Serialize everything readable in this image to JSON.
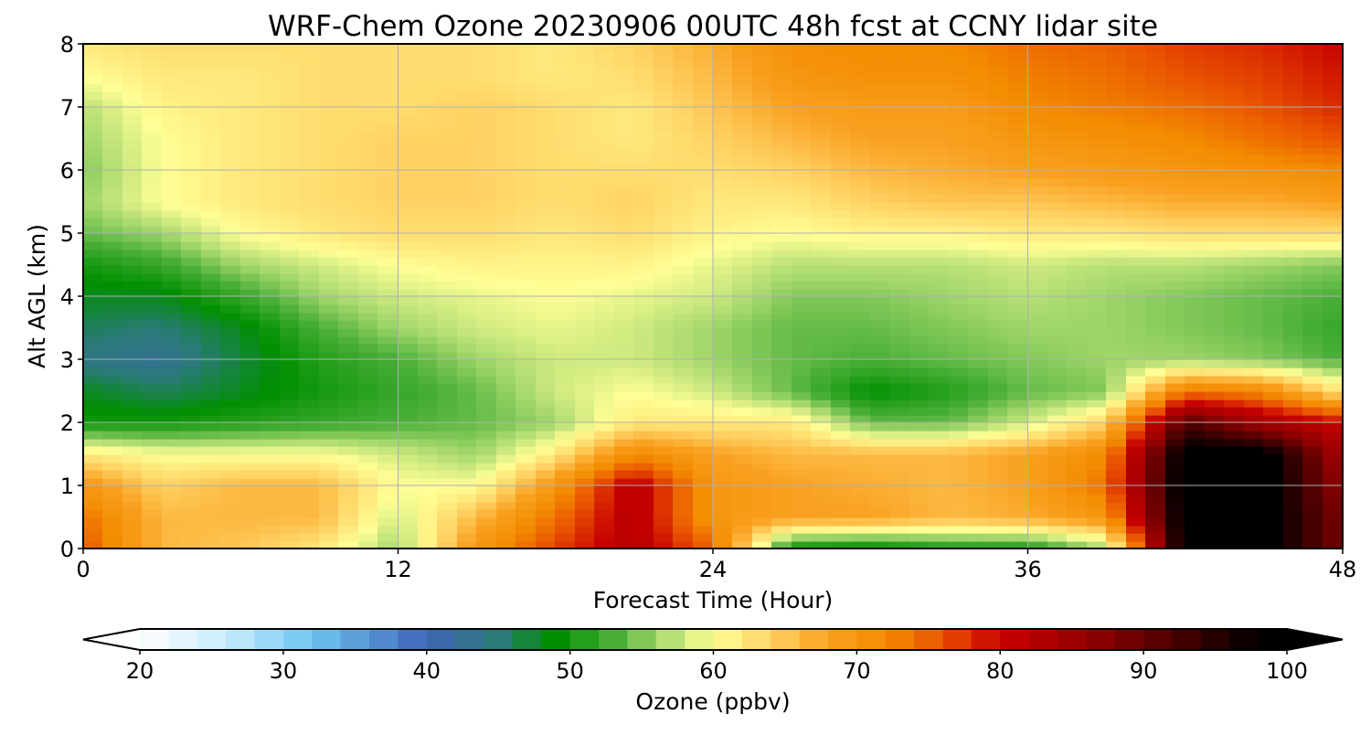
{
  "chart_data": {
    "type": "heatmap",
    "title": "WRF-Chem Ozone  20230906 00UTC 48h fcst at CCNY lidar site",
    "xlabel": "Forecast Time (Hour)",
    "ylabel": "Alt AGL (km)",
    "xlim": [
      0,
      48
    ],
    "ylim": [
      0,
      8
    ],
    "x_ticks": [
      "0",
      "12",
      "24",
      "36",
      "48"
    ],
    "y_ticks": [
      "0",
      "1",
      "2",
      "3",
      "4",
      "5",
      "6",
      "7",
      "8"
    ],
    "grid": true,
    "x": [
      0,
      3,
      6,
      9,
      12,
      15,
      18,
      21,
      24,
      27,
      30,
      33,
      36,
      39,
      42,
      45,
      48
    ],
    "y": [
      0,
      0.5,
      1,
      1.5,
      2,
      2.5,
      3,
      3.5,
      4,
      4.5,
      5,
      5.5,
      6,
      6.5,
      7,
      7.5,
      8
    ],
    "z_units": "ppbv",
    "z": [
      [
        76,
        66,
        65,
        62,
        56,
        70,
        77,
        82,
        75,
        49,
        48,
        50,
        50,
        56,
        100,
        100,
        88
      ],
      [
        74,
        66,
        66,
        66,
        58,
        66,
        74,
        82,
        70,
        68,
        68,
        66,
        67,
        70,
        100,
        100,
        88
      ],
      [
        70,
        64,
        66,
        66,
        60,
        60,
        70,
        82,
        70,
        68,
        67,
        66,
        68,
        74,
        100,
        100,
        86
      ],
      [
        62,
        60,
        60,
        60,
        58,
        56,
        62,
        72,
        68,
        66,
        66,
        66,
        68,
        72,
        100,
        100,
        84
      ],
      [
        50,
        50,
        51,
        52,
        53,
        54,
        56,
        62,
        62,
        62,
        54,
        54,
        58,
        64,
        92,
        84,
        80
      ],
      [
        48,
        46,
        48,
        50,
        52,
        54,
        58,
        60,
        58,
        54,
        49,
        51,
        54,
        55,
        74,
        72,
        62
      ],
      [
        44,
        43,
        47,
        51,
        53,
        56,
        58,
        58,
        56,
        54,
        53,
        54,
        55,
        56,
        56,
        55,
        53
      ],
      [
        46,
        45,
        48,
        53,
        56,
        58,
        59,
        58,
        56,
        54,
        54,
        55,
        56,
        56,
        55,
        54,
        52
      ],
      [
        48,
        48,
        52,
        56,
        58,
        59,
        60,
        59,
        58,
        55,
        55,
        56,
        57,
        56,
        55,
        54,
        53
      ],
      [
        50,
        52,
        56,
        58,
        60,
        61,
        61,
        61,
        59,
        57,
        57,
        57,
        58,
        57,
        57,
        56,
        55
      ],
      [
        54,
        56,
        60,
        62,
        63,
        63,
        62,
        63,
        61,
        60,
        61,
        61,
        62,
        62,
        63,
        63,
        63
      ],
      [
        56,
        60,
        62,
        63,
        64,
        64,
        63,
        64,
        62,
        62,
        64,
        65,
        65,
        66,
        67,
        67,
        68
      ],
      [
        55,
        60,
        62,
        63,
        64,
        64,
        63,
        63,
        63,
        64,
        66,
        67,
        68,
        69,
        70,
        71,
        72
      ],
      [
        56,
        60,
        62,
        63,
        64,
        64,
        63,
        62,
        64,
        66,
        68,
        68,
        70,
        71,
        72,
        74,
        76
      ],
      [
        57,
        61,
        62,
        63,
        63,
        64,
        63,
        62,
        65,
        68,
        69,
        69,
        72,
        73,
        74,
        76,
        78
      ],
      [
        60,
        62,
        62,
        63,
        63,
        63,
        62,
        63,
        66,
        70,
        71,
        71,
        73,
        74,
        76,
        77,
        79
      ],
      [
        62,
        63,
        63,
        63,
        63,
        63,
        62,
        64,
        67,
        71,
        72,
        72,
        74,
        75,
        77,
        78,
        80
      ]
    ],
    "colorbar": {
      "label": "Ozone  (ppbv)",
      "min": 20,
      "max": 100,
      "ticks": [
        "20",
        "30",
        "40",
        "50",
        "60",
        "70",
        "80",
        "90",
        "100"
      ],
      "extend": "both",
      "stops": [
        {
          "v": 20,
          "c": "#ffffff"
        },
        {
          "v": 26,
          "c": "#c9ecfb"
        },
        {
          "v": 32,
          "c": "#6fc6f2"
        },
        {
          "v": 40,
          "c": "#3e64b8"
        },
        {
          "v": 45,
          "c": "#2a7a78"
        },
        {
          "v": 49,
          "c": "#008f00"
        },
        {
          "v": 53,
          "c": "#48ae37"
        },
        {
          "v": 56,
          "c": "#9fd56a"
        },
        {
          "v": 60,
          "c": "#ffff96"
        },
        {
          "v": 64,
          "c": "#ffd263"
        },
        {
          "v": 68,
          "c": "#f9a020"
        },
        {
          "v": 72,
          "c": "#f38c00"
        },
        {
          "v": 76,
          "c": "#e95200"
        },
        {
          "v": 80,
          "c": "#c80000"
        },
        {
          "v": 86,
          "c": "#960000"
        },
        {
          "v": 93,
          "c": "#400000"
        },
        {
          "v": 98,
          "c": "#000000"
        }
      ]
    }
  }
}
